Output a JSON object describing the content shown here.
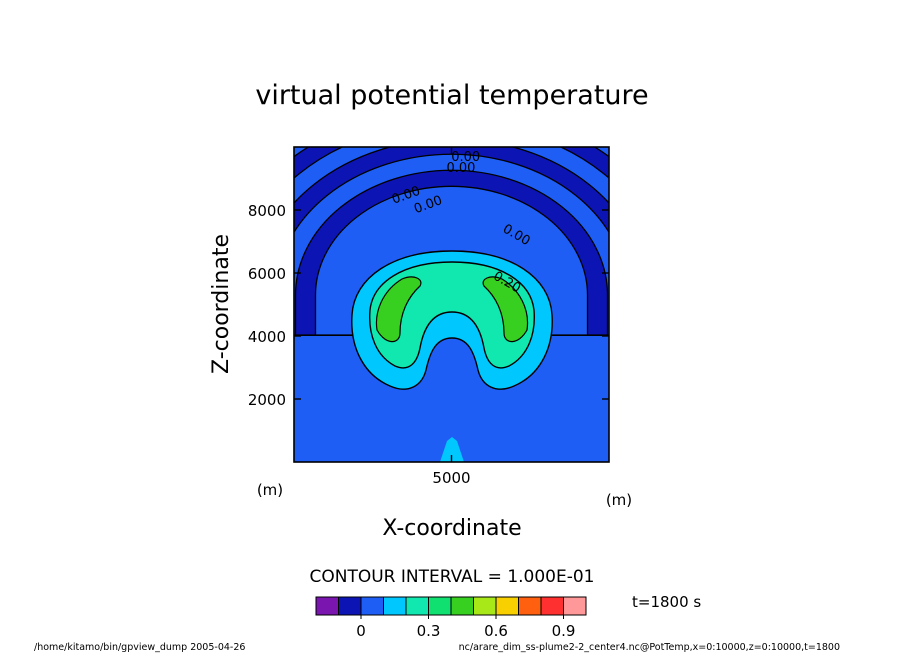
{
  "chart_data": {
    "type": "heatmap",
    "title": "virtual potential temperature",
    "xlabel": "X-coordinate",
    "ylabel": "Z-coordinate",
    "x_unit": "(m)",
    "y_unit": "(m)",
    "xlim": [
      0,
      10000
    ],
    "ylim": [
      0,
      10000
    ],
    "x_ticks": [
      5000
    ],
    "x_tick_labels": [
      "5000"
    ],
    "y_ticks": [
      2000,
      4000,
      6000,
      8000
    ],
    "y_tick_labels": [
      "2000",
      "4000",
      "6000",
      "8000"
    ],
    "contour_interval_label": "CONTOUR INTERVAL = 1.000E-01",
    "contour_labels": [
      {
        "text": "0.00",
        "x": 5450,
        "y": 9550
      },
      {
        "text": "0.00",
        "x": 5300,
        "y": 9200
      },
      {
        "text": "0.00",
        "x": 3600,
        "y": 8350
      },
      {
        "text": "0.00",
        "x": 4300,
        "y": 8050
      },
      {
        "text": "0.00",
        "x": 7000,
        "y": 7100
      },
      {
        "text": "0.20",
        "x": 6700,
        "y": 5600
      }
    ],
    "colorbar": {
      "colors": [
        "#7a15b0",
        "#0d14b4",
        "#1f5ef5",
        "#00c8ff",
        "#10e8b0",
        "#10e070",
        "#38d020",
        "#a8e818",
        "#f8d000",
        "#ff6010",
        "#ff3030",
        "#ff9898"
      ],
      "tick_values": [
        0,
        0.3,
        0.6,
        0.9
      ],
      "tick_labels": [
        "0",
        "0.3",
        "0.6",
        "0.9"
      ]
    },
    "time_label": "t=1800 s",
    "footer_left": "/home/kitamo/bin/gpview_dump  2005-04-26",
    "footer_right": "nc/arare_dim_ss-plume2-2_center4.nc@PotTemp,x=0:10000,z=0:10000,t=1800"
  }
}
